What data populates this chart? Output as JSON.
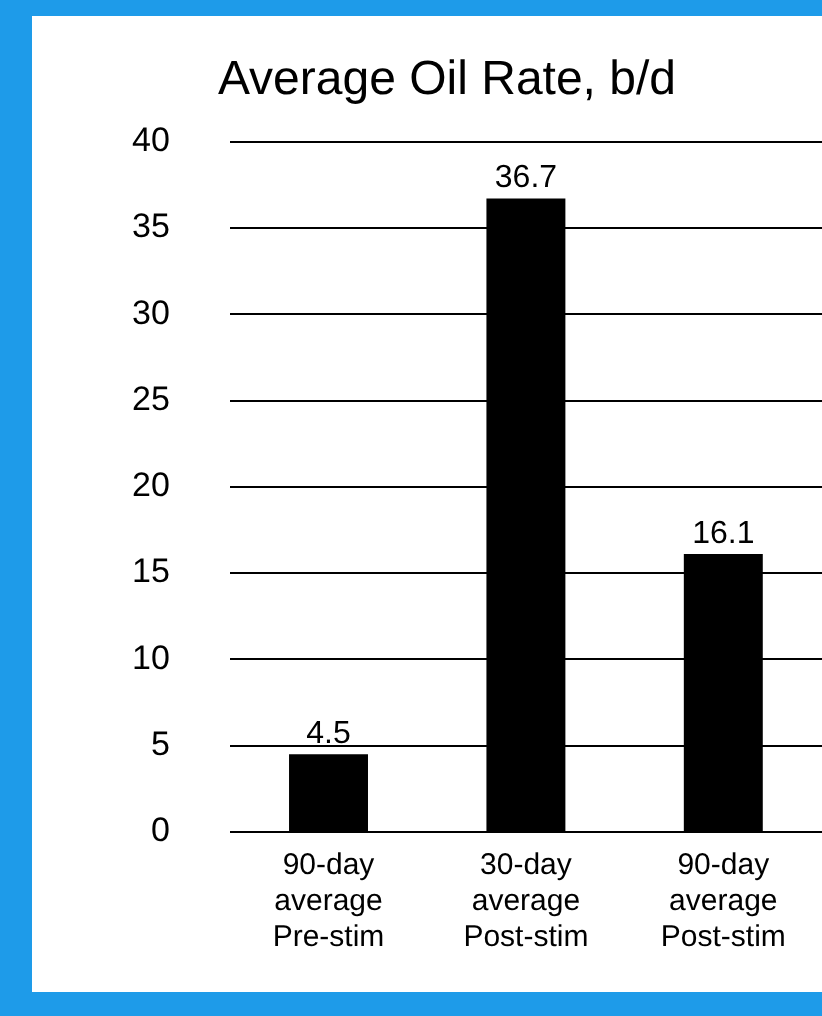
{
  "chart_data": {
    "type": "bar",
    "title": "Average Oil Rate, b/d",
    "categories": [
      "90-day average Pre-stim",
      "30-day average Post-stim",
      "90-day average Post-stim"
    ],
    "values": [
      4.5,
      36.7,
      16.1
    ],
    "color": "#000000",
    "ylim": [
      0,
      40
    ],
    "yticks": [
      0,
      5,
      10,
      15,
      20,
      25,
      30,
      35,
      40
    ],
    "grid": "y",
    "data_labels": true,
    "legend": false
  }
}
